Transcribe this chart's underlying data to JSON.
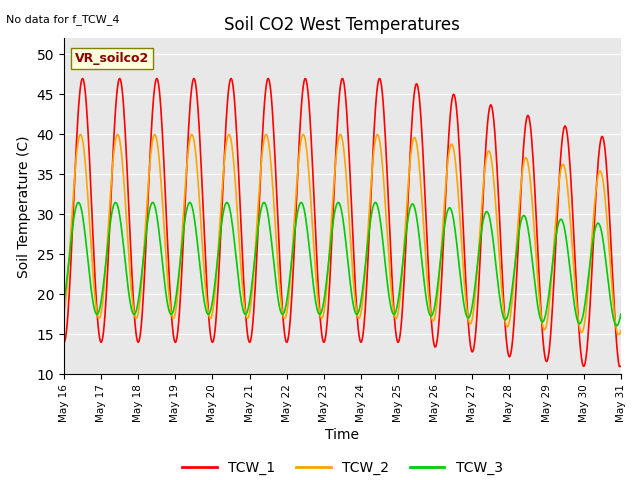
{
  "title": "Soil CO2 West Temperatures",
  "xlabel": "Time",
  "ylabel": "Soil Temperature (C)",
  "no_data_text": "No data for f_TCW_4",
  "annotation_text": "VR_soilco2",
  "ylim": [
    10,
    52
  ],
  "yticks": [
    10,
    15,
    20,
    25,
    30,
    35,
    40,
    45,
    50
  ],
  "background_color": "#e8e8e8",
  "line_colors": {
    "TCW_1": "#ff0000",
    "TCW_2": "#ffa500",
    "TCW_3": "#00cc00"
  },
  "x_tick_labels": [
    "May 16",
    "May 17",
    "May 18",
    "May 19",
    "May 20",
    "May 21",
    "May 22",
    "May 23",
    "May 24",
    "May 25",
    "May 26",
    "May 27",
    "May 28",
    "May 29",
    "May 30",
    "May 31"
  ],
  "n_days": 15,
  "start_day": 16
}
